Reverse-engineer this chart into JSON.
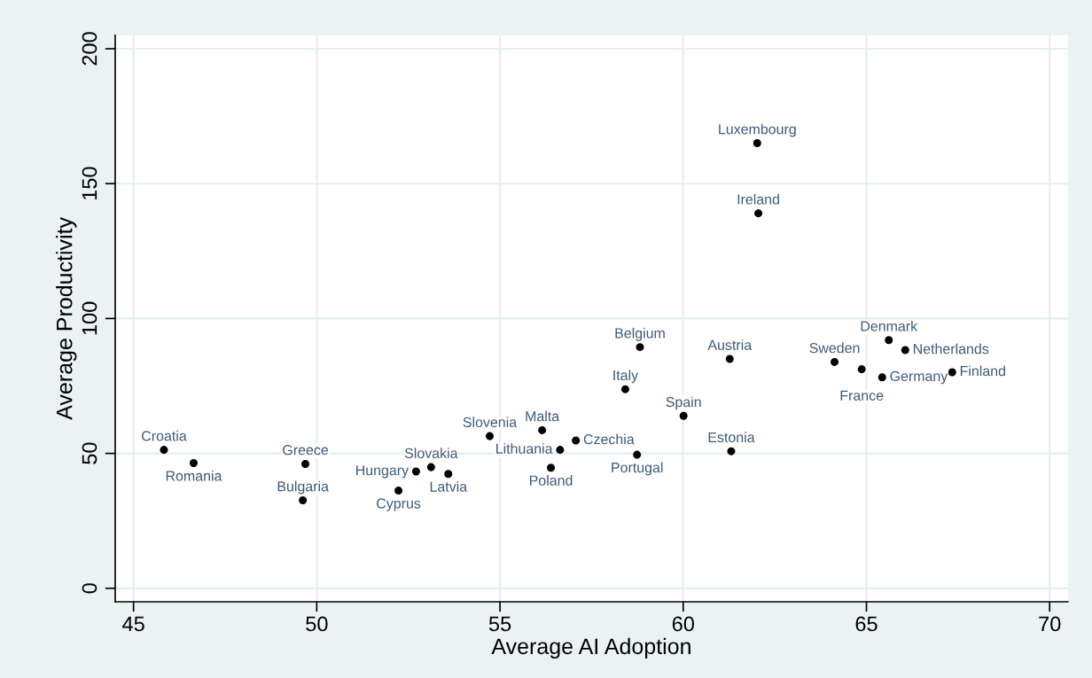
{
  "chart_data": {
    "type": "scatter",
    "xlabel": "Average AI Adoption",
    "ylabel": "Average Productivity",
    "x": [
      45.83,
      46.64,
      49.69,
      49.62,
      52.23,
      52.71,
      53.12,
      53.59,
      54.72,
      56.15,
      57.07,
      56.64,
      56.39,
      58.42,
      58.82,
      58.74,
      60.01,
      61.27,
      61.31,
      62.02,
      62.05,
      64.13,
      64.87,
      65.43,
      65.61,
      66.06,
      67.34
    ],
    "series": [
      {
        "color": "#000000",
        "values": [
          51.3,
          46.4,
          46.1,
          32.6,
          36.2,
          43.3,
          44.9,
          42.4,
          56.4,
          58.6,
          54.8,
          51.3,
          44.7,
          73.8,
          89.4,
          49.5,
          63.9,
          85.0,
          50.8,
          165.0,
          139.0,
          83.9,
          81.2,
          78.2,
          92.0,
          88.3,
          80.1
        ]
      }
    ],
    "annotations": [
      {
        "text": "Croatia",
        "x": 45.83,
        "y": 51.3
      },
      {
        "text": "Romania",
        "x": 46.64,
        "y": 46.4
      },
      {
        "text": "Greece",
        "x": 49.69,
        "y": 46.1
      },
      {
        "text": "Bulgaria",
        "x": 49.62,
        "y": 32.6
      },
      {
        "text": "Cyprus",
        "x": 52.23,
        "y": 36.2
      },
      {
        "text": "Hungary",
        "x": 52.71,
        "y": 43.3
      },
      {
        "text": "Slovakia",
        "x": 53.12,
        "y": 44.9
      },
      {
        "text": "Latvia",
        "x": 53.59,
        "y": 42.4
      },
      {
        "text": "Slovenia",
        "x": 54.72,
        "y": 56.4
      },
      {
        "text": "Malta",
        "x": 56.15,
        "y": 58.6
      },
      {
        "text": "Czechia",
        "x": 57.07,
        "y": 54.8
      },
      {
        "text": "Lithuania",
        "x": 56.64,
        "y": 51.3
      },
      {
        "text": "Poland",
        "x": 56.39,
        "y": 44.7
      },
      {
        "text": "Italy",
        "x": 58.42,
        "y": 73.8
      },
      {
        "text": "Belgium",
        "x": 58.82,
        "y": 89.4
      },
      {
        "text": "Portugal",
        "x": 58.74,
        "y": 49.5
      },
      {
        "text": "Spain",
        "x": 60.01,
        "y": 63.9
      },
      {
        "text": "Austria",
        "x": 61.27,
        "y": 85.0
      },
      {
        "text": "Estonia",
        "x": 61.31,
        "y": 50.8
      },
      {
        "text": "Luxembourg",
        "x": 62.02,
        "y": 165.0
      },
      {
        "text": "Ireland",
        "x": 62.05,
        "y": 139.0
      },
      {
        "text": "Sweden",
        "x": 64.13,
        "y": 83.9
      },
      {
        "text": "France",
        "x": 64.87,
        "y": 81.2
      },
      {
        "text": "Germany",
        "x": 65.43,
        "y": 78.2
      },
      {
        "text": "Denmark",
        "x": 65.61,
        "y": 92.0
      },
      {
        "text": "Netherlands",
        "x": 66.06,
        "y": 88.3
      },
      {
        "text": "Finland",
        "x": 67.34,
        "y": 80.1
      }
    ],
    "xlim": [
      44.5,
      70.5
    ],
    "xticks": [
      45,
      50,
      55,
      60,
      65,
      70
    ],
    "ylim": [
      -5,
      205
    ],
    "yticks": [
      0,
      50,
      100,
      150,
      200
    ],
    "grid": true,
    "marker": "circle"
  }
}
